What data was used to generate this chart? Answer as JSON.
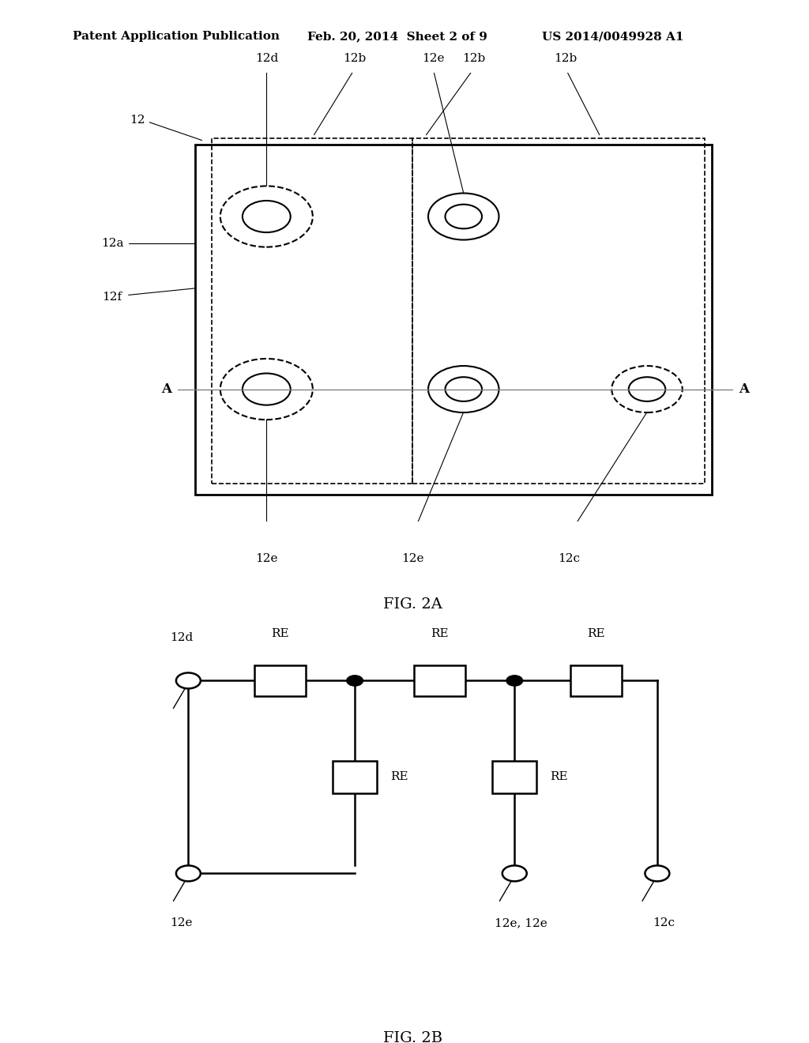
{
  "bg_color": "#ffffff",
  "header_left": "Patent Application Publication",
  "header_mid": "Feb. 20, 2014  Sheet 2 of 9",
  "header_right": "US 2014/0049928 A1",
  "fig2a_caption": "FIG. 2A",
  "fig2b_caption": "FIG. 2B"
}
